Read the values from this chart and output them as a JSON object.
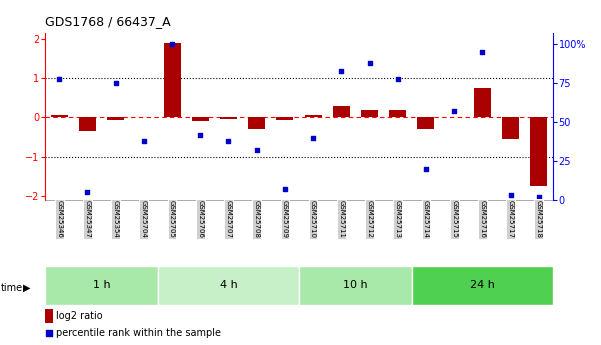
{
  "title": "GDS1768 / 66437_A",
  "samples": [
    "GSM25346",
    "GSM25347",
    "GSM25354",
    "GSM25704",
    "GSM25705",
    "GSM25706",
    "GSM25707",
    "GSM25708",
    "GSM25709",
    "GSM25710",
    "GSM25711",
    "GSM25712",
    "GSM25713",
    "GSM25714",
    "GSM25715",
    "GSM25716",
    "GSM25717",
    "GSM25718"
  ],
  "log2_ratio": [
    0.07,
    -0.35,
    -0.07,
    0.0,
    1.9,
    -0.08,
    -0.05,
    -0.3,
    -0.07,
    0.07,
    0.28,
    0.18,
    0.2,
    -0.3,
    0.0,
    0.75,
    -0.55,
    -1.75
  ],
  "percentile_rank": [
    78,
    5,
    75,
    38,
    100,
    42,
    38,
    32,
    7,
    40,
    83,
    88,
    78,
    20,
    57,
    95,
    3,
    2
  ],
  "time_groups": [
    {
      "label": "1 h",
      "start": 0,
      "end": 3,
      "color": "#a8e8a8"
    },
    {
      "label": "4 h",
      "start": 4,
      "end": 8,
      "color": "#c8f0c8"
    },
    {
      "label": "10 h",
      "start": 9,
      "end": 12,
      "color": "#a8e8a8"
    },
    {
      "label": "24 h",
      "start": 13,
      "end": 17,
      "color": "#50d050"
    }
  ],
  "bar_color": "#aa0000",
  "dot_color": "#0000cc",
  "ylim_left": [
    -2.1,
    2.15
  ],
  "ylim_right": [
    0,
    107.5
  ],
  "yticks_left": [
    -2,
    -1,
    0,
    1,
    2
  ],
  "yticks_right": [
    0,
    25,
    50,
    75,
    100
  ],
  "ytick_labels_right": [
    "0",
    "25",
    "50",
    "75",
    "100%"
  ],
  "legend_log2": "log2 ratio",
  "legend_pct": "percentile rank within the sample",
  "xlabel_time": "time"
}
